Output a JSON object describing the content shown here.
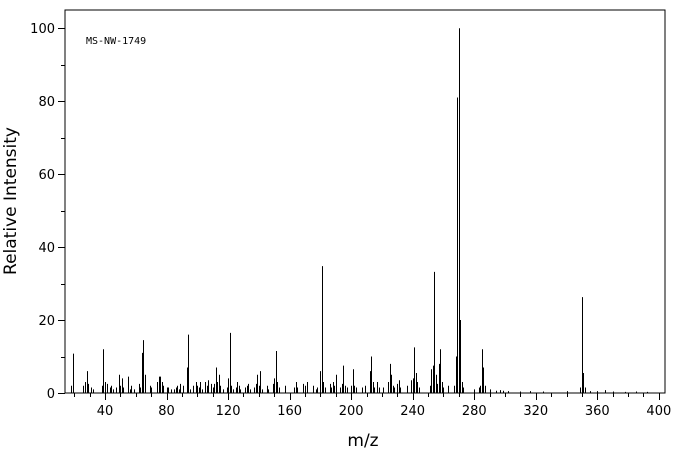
{
  "chart_data": {
    "type": "bar",
    "title": "",
    "annotation": "MS-NW-1749",
    "xlabel": "m/z",
    "ylabel": "Relative Intensity",
    "xlim": [
      14,
      404
    ],
    "ylim": [
      0,
      105
    ],
    "x_ticks": [
      40,
      80,
      120,
      160,
      200,
      240,
      280,
      320,
      360,
      400
    ],
    "y_ticks": [
      0,
      20,
      40,
      60,
      80,
      100
    ],
    "grid": false,
    "legend": "none",
    "line_color": "#000000",
    "peaks": [
      [
        18,
        2
      ],
      [
        19,
        10.8
      ],
      [
        26,
        2
      ],
      [
        27,
        3
      ],
      [
        28,
        6
      ],
      [
        29,
        2.5
      ],
      [
        31,
        1.5
      ],
      [
        32,
        1
      ],
      [
        38,
        2
      ],
      [
        39,
        12
      ],
      [
        40,
        3
      ],
      [
        41,
        2.5
      ],
      [
        43,
        1.5
      ],
      [
        44,
        2
      ],
      [
        45,
        1
      ],
      [
        47,
        1.5
      ],
      [
        49,
        5
      ],
      [
        50,
        2
      ],
      [
        51,
        4
      ],
      [
        52,
        1.5
      ],
      [
        55,
        4.5
      ],
      [
        56,
        1
      ],
      [
        57,
        2
      ],
      [
        59,
        1
      ],
      [
        62,
        2.5
      ],
      [
        63,
        1.5
      ],
      [
        64,
        11
      ],
      [
        65,
        14.5
      ],
      [
        66,
        5
      ],
      [
        69,
        2
      ],
      [
        70,
        1.5
      ],
      [
        74,
        3
      ],
      [
        75,
        4.5
      ],
      [
        76,
        4.5
      ],
      [
        77,
        3
      ],
      [
        78,
        2
      ],
      [
        80,
        1.5
      ],
      [
        81,
        1.5
      ],
      [
        83,
        1
      ],
      [
        85,
        1
      ],
      [
        86,
        1.5
      ],
      [
        87,
        2
      ],
      [
        88,
        1
      ],
      [
        89,
        2.5
      ],
      [
        91,
        2
      ],
      [
        93,
        7
      ],
      [
        94,
        16
      ],
      [
        95,
        1
      ],
      [
        97,
        2
      ],
      [
        99,
        3
      ],
      [
        100,
        2
      ],
      [
        101,
        1.5
      ],
      [
        102,
        3
      ],
      [
        103,
        1
      ],
      [
        105,
        3
      ],
      [
        106,
        2
      ],
      [
        107,
        3.5
      ],
      [
        109,
        2.5
      ],
      [
        110,
        1.5
      ],
      [
        111,
        2.5
      ],
      [
        112,
        7
      ],
      [
        113,
        3
      ],
      [
        114,
        5
      ],
      [
        115,
        2
      ],
      [
        117,
        1
      ],
      [
        119,
        1.5
      ],
      [
        120,
        4
      ],
      [
        121,
        16.5
      ],
      [
        122,
        2
      ],
      [
        123,
        1
      ],
      [
        125,
        1.5
      ],
      [
        126,
        3
      ],
      [
        127,
        2
      ],
      [
        128,
        1
      ],
      [
        131,
        1.5
      ],
      [
        132,
        2
      ],
      [
        133,
        2.5
      ],
      [
        134,
        1
      ],
      [
        137,
        1.5
      ],
      [
        138,
        2.5
      ],
      [
        139,
        5
      ],
      [
        140,
        2
      ],
      [
        141,
        6
      ],
      [
        142,
        1
      ],
      [
        145,
        2
      ],
      [
        146,
        1
      ],
      [
        149,
        2.5
      ],
      [
        150,
        4
      ],
      [
        151,
        11.5
      ],
      [
        152,
        3
      ],
      [
        153,
        1.5
      ],
      [
        157,
        2
      ],
      [
        163,
        1.5
      ],
      [
        164,
        3
      ],
      [
        165,
        1.5
      ],
      [
        169,
        2.5
      ],
      [
        170,
        2
      ],
      [
        171,
        3
      ],
      [
        175,
        2
      ],
      [
        177,
        1
      ],
      [
        178,
        1.5
      ],
      [
        180,
        6
      ],
      [
        181,
        34.8
      ],
      [
        182,
        3
      ],
      [
        183,
        1.5
      ],
      [
        186,
        2.5
      ],
      [
        187,
        1.5
      ],
      [
        188,
        3
      ],
      [
        189,
        2
      ],
      [
        190,
        5
      ],
      [
        193,
        1.5
      ],
      [
        194,
        2.5
      ],
      [
        195,
        7.5
      ],
      [
        196,
        2
      ],
      [
        197,
        1.5
      ],
      [
        200,
        2
      ],
      [
        201,
        6.5
      ],
      [
        202,
        2
      ],
      [
        203,
        1.5
      ],
      [
        207,
        1.5
      ],
      [
        209,
        2
      ],
      [
        212,
        6
      ],
      [
        213,
        10
      ],
      [
        214,
        3
      ],
      [
        215,
        1.5
      ],
      [
        217,
        3
      ],
      [
        218,
        1.5
      ],
      [
        221,
        1.5
      ],
      [
        224,
        3
      ],
      [
        225,
        8
      ],
      [
        226,
        5
      ],
      [
        227,
        2
      ],
      [
        228,
        1.5
      ],
      [
        230,
        2.5
      ],
      [
        231,
        3.5
      ],
      [
        232,
        1.5
      ],
      [
        236,
        2
      ],
      [
        239,
        3.5
      ],
      [
        240,
        4
      ],
      [
        241,
        12.5
      ],
      [
        242,
        5.5
      ],
      [
        243,
        3
      ],
      [
        244,
        1.5
      ],
      [
        251,
        2
      ],
      [
        252,
        6.5
      ],
      [
        253,
        7.5
      ],
      [
        254,
        33.2
      ],
      [
        255,
        5
      ],
      [
        256,
        2.5
      ],
      [
        257,
        8
      ],
      [
        258,
        12
      ],
      [
        259,
        3
      ],
      [
        260,
        1.5
      ],
      [
        263,
        2
      ],
      [
        267,
        2
      ],
      [
        268,
        10
      ],
      [
        269,
        81
      ],
      [
        270,
        100
      ],
      [
        271,
        20
      ],
      [
        272,
        3
      ],
      [
        273,
        1.5
      ],
      [
        280,
        1
      ],
      [
        283,
        1.5
      ],
      [
        284,
        2
      ],
      [
        285,
        12
      ],
      [
        286,
        7
      ],
      [
        287,
        2
      ],
      [
        290,
        1
      ],
      [
        294,
        0.6
      ],
      [
        297,
        0.8
      ],
      [
        299,
        0.6
      ],
      [
        302,
        0.5
      ],
      [
        310,
        0.4
      ],
      [
        316,
        0.5
      ],
      [
        325,
        0.4
      ],
      [
        340,
        0.5
      ],
      [
        349,
        1.5
      ],
      [
        350,
        26.3
      ],
      [
        351,
        5.5
      ],
      [
        352,
        1.5
      ],
      [
        355,
        0.5
      ],
      [
        360,
        0.5
      ],
      [
        365,
        0.8
      ],
      [
        370,
        0.4
      ],
      [
        378,
        0.3
      ],
      [
        385,
        0.4
      ],
      [
        392,
        0.3
      ]
    ]
  }
}
